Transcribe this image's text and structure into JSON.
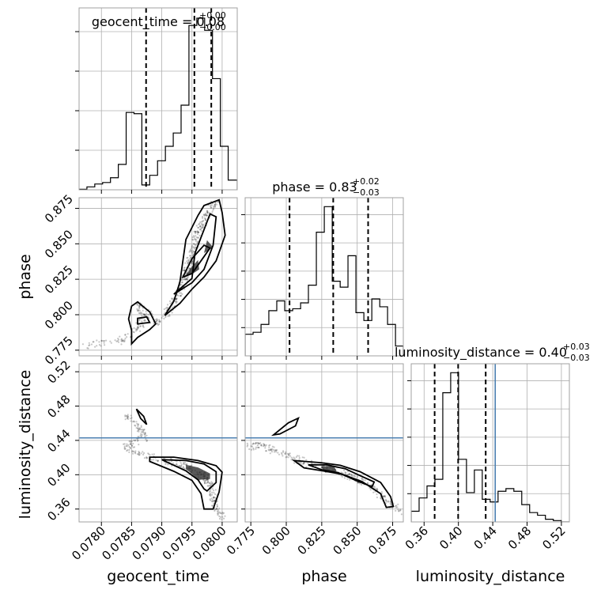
{
  "chart_data": {
    "type": "corner",
    "parameters": [
      {
        "name": "geocent_time",
        "xlabel": "geocent_time",
        "ylabel": "",
        "title_prefix": "geocent_time = ",
        "title_value": "0.08",
        "title_plus": "+0.00",
        "title_minus": "−0.00",
        "range": [
          0.07763,
          0.08025
        ],
        "ticks": [
          0.078,
          0.0785,
          0.079,
          0.0795,
          0.08
        ],
        "tick_labels": [
          "0.0780",
          "0.0785",
          "0.0790",
          "0.0795",
          "0.0800"
        ],
        "quantiles": [
          0.07874,
          0.07954,
          0.07982
        ],
        "hist_edges": [
          0.07763,
          0.07776,
          0.07789,
          0.07802,
          0.07815,
          0.07828,
          0.07841,
          0.07854,
          0.07867,
          0.0788,
          0.07893,
          0.07906,
          0.07919,
          0.07932,
          0.07945,
          0.07958,
          0.07971,
          0.07984,
          0.07997,
          0.0801,
          0.08025
        ],
        "hist_counts": [
          0.2,
          1.2,
          2.4,
          3.0,
          5.0,
          10.5,
          32.0,
          31.5,
          2.0,
          6.0,
          12.0,
          18.0,
          23.5,
          35.0,
          68.0,
          71.0,
          66.0,
          46.0,
          18.0,
          4.0
        ]
      },
      {
        "name": "phase",
        "xlabel": "phase",
        "ylabel": "phase",
        "title_prefix": "phase = ",
        "title_value": "0.83",
        "title_plus": "+0.02",
        "title_minus": "−0.03",
        "range": [
          0.771,
          0.8825
        ],
        "ticks": [
          0.775,
          0.8,
          0.825,
          0.85,
          0.875
        ],
        "tick_labels": [
          "0.775",
          "0.800",
          "0.825",
          "0.850",
          "0.875"
        ],
        "quantiles": [
          0.8023,
          0.8331,
          0.8577
        ],
        "hist_edges": [
          0.771,
          0.7766,
          0.7822,
          0.7877,
          0.7933,
          0.7989,
          0.8045,
          0.8101,
          0.8156,
          0.8212,
          0.8268,
          0.8324,
          0.838,
          0.8435,
          0.8491,
          0.8547,
          0.8603,
          0.8659,
          0.8714,
          0.877,
          0.8825
        ],
        "hist_counts": [
          11.0,
          12.0,
          16.0,
          23.0,
          28.0,
          23.0,
          24.0,
          27.0,
          36.0,
          63.0,
          76.0,
          38.0,
          35.0,
          51.0,
          22.0,
          18.0,
          29.0,
          25.0,
          16.0,
          5.0
        ]
      },
      {
        "name": "luminosity_distance",
        "xlabel": "luminosity_distance",
        "ylabel": "luminosity_distance",
        "title_prefix": "luminosity_distance = ",
        "title_value": "0.40",
        "title_plus": "+0.03",
        "title_minus": "−0.03",
        "range": [
          0.345,
          0.5293
        ],
        "ticks": [
          0.36,
          0.4,
          0.44,
          0.48,
          0.52
        ],
        "tick_labels": [
          "0.36",
          "0.40",
          "0.44",
          "0.48",
          "0.52"
        ],
        "quantiles": [
          0.3723,
          0.3997,
          0.4318
        ],
        "truth": 0.4429,
        "hist_edges": [
          0.345,
          0.3542,
          0.3634,
          0.3726,
          0.3818,
          0.391,
          0.4002,
          0.4094,
          0.4186,
          0.4278,
          0.437,
          0.4462,
          0.4554,
          0.4646,
          0.4738,
          0.483,
          0.4922,
          0.5014,
          0.5106,
          0.5198,
          0.5293
        ],
        "hist_counts": [
          8.0,
          18.0,
          27.0,
          32.0,
          97.0,
          112.0,
          47.0,
          22.0,
          39.0,
          17.0,
          15.0,
          23.0,
          25.0,
          23.0,
          13.0,
          7.0,
          5.0,
          2.0,
          1.0,
          0.0
        ]
      }
    ],
    "pairs": [
      {
        "x": "geocent_time",
        "y": "phase",
        "cloud_path": [
          [
            0.0777,
            0.7785
          ],
          [
            0.0783,
            0.781
          ],
          [
            0.0786,
            0.789
          ],
          [
            0.0787,
            0.798
          ],
          [
            0.0786,
            0.808
          ],
          [
            0.0789,
            0.794
          ],
          [
            0.0791,
            0.8015
          ],
          [
            0.0792,
            0.809
          ],
          [
            0.0793,
            0.816
          ],
          [
            0.07935,
            0.823
          ],
          [
            0.0794,
            0.829
          ],
          [
            0.07945,
            0.835
          ],
          [
            0.0795,
            0.842
          ],
          [
            0.07955,
            0.85
          ],
          [
            0.0796,
            0.858
          ],
          [
            0.0797,
            0.866
          ],
          [
            0.0798,
            0.874
          ],
          [
            0.0799,
            0.88
          ]
        ],
        "contours": [
          [
            [
              0.0785,
              0.7795
            ],
            [
              0.0786,
              0.784
            ],
            [
              0.0788,
              0.7895
            ],
            [
              0.0789,
              0.7935
            ],
            [
              0.0788,
              0.802
            ],
            [
              0.0786,
              0.809
            ],
            [
              0.0785,
              0.806
            ],
            [
              0.07845,
              0.797
            ],
            [
              0.0785,
              0.789
            ],
            [
              0.0785,
              0.7795
            ]
          ],
          [
            [
              0.0786,
              0.7935
            ],
            [
              0.0788,
              0.7945
            ],
            [
              0.07875,
              0.7985
            ],
            [
              0.0786,
              0.7975
            ],
            [
              0.0786,
              0.7935
            ]
          ],
          [
            [
              0.07905,
              0.7995
            ],
            [
              0.0792,
              0.8095
            ],
            [
              0.0793,
              0.823
            ],
            [
              0.07935,
              0.838
            ],
            [
              0.0794,
              0.853
            ],
            [
              0.0796,
              0.87
            ],
            [
              0.0797,
              0.877
            ],
            [
              0.07995,
              0.881
            ],
            [
              0.08,
              0.872
            ],
            [
              0.08005,
              0.856
            ],
            [
              0.0799,
              0.838
            ],
            [
              0.0797,
              0.8265
            ],
            [
              0.0795,
              0.818
            ],
            [
              0.0793,
              0.808
            ],
            [
              0.07905,
              0.7995
            ]
          ],
          [
            [
              0.0792,
              0.8145
            ],
            [
              0.0795,
              0.8255
            ],
            [
              0.07955,
              0.8435
            ],
            [
              0.0797,
              0.86
            ],
            [
              0.0798,
              0.871
            ],
            [
              0.0799,
              0.869
            ],
            [
              0.07985,
              0.849
            ],
            [
              0.0797,
              0.832
            ],
            [
              0.0795,
              0.8225
            ],
            [
              0.0792,
              0.8145
            ]
          ],
          [
            [
              0.07935,
              0.8265
            ],
            [
              0.0795,
              0.8395
            ],
            [
              0.0797,
              0.849
            ],
            [
              0.0798,
              0.847
            ],
            [
              0.07965,
              0.838
            ],
            [
              0.0795,
              0.829
            ],
            [
              0.07935,
              0.8265
            ]
          ]
        ],
        "filled_regions": [
          [
            [
              0.0794,
              0.828
            ],
            [
              0.0795,
              0.834
            ],
            [
              0.0796,
              0.8385
            ],
            [
              0.07962,
              0.832
            ],
            [
              0.0795,
              0.8285
            ],
            [
              0.0794,
              0.828
            ]
          ],
          [
            [
              0.0797,
              0.8435
            ],
            [
              0.07985,
              0.8475
            ],
            [
              0.07975,
              0.8525
            ],
            [
              0.0797,
              0.8435
            ]
          ]
        ]
      },
      {
        "x": "geocent_time",
        "y": "luminosity_distance",
        "truth_y": 0.4429,
        "cloud_path": [
          [
            0.0784,
            0.469
          ],
          [
            0.07865,
            0.455
          ],
          [
            0.0787,
            0.443
          ],
          [
            0.0784,
            0.434
          ],
          [
            0.0786,
            0.424
          ],
          [
            0.079,
            0.418
          ],
          [
            0.0793,
            0.412
          ],
          [
            0.0795,
            0.405
          ],
          [
            0.0797,
            0.397
          ],
          [
            0.0798,
            0.389
          ],
          [
            0.07985,
            0.376
          ],
          [
            0.0799,
            0.362
          ],
          [
            0.08,
            0.35
          ]
        ],
        "contours": [
          [
            [
              0.07858,
              0.4765
            ],
            [
              0.0787,
              0.468
            ],
            [
              0.07875,
              0.4585
            ],
            [
              0.07865,
              0.4655
            ],
            [
              0.07858,
              0.4765
            ]
          ],
          [
            [
              0.0788,
              0.4205
            ],
            [
              0.0792,
              0.4205
            ],
            [
              0.0796,
              0.4165
            ],
            [
              0.0799,
              0.4105
            ],
            [
              0.08,
              0.403
            ],
            [
              0.07995,
              0.38
            ],
            [
              0.07985,
              0.36
            ],
            [
              0.0797,
              0.36
            ],
            [
              0.07965,
              0.378
            ],
            [
              0.0795,
              0.3935
            ],
            [
              0.0792,
              0.404
            ],
            [
              0.0788,
              0.4155
            ],
            [
              0.0788,
              0.4205
            ]
          ],
          [
            [
              0.079,
              0.4175
            ],
            [
              0.0794,
              0.4165
            ],
            [
              0.0797,
              0.4125
            ],
            [
              0.0799,
              0.4035
            ],
            [
              0.0799,
              0.391
            ],
            [
              0.07975,
              0.381
            ],
            [
              0.0797,
              0.3835
            ],
            [
              0.0796,
              0.394
            ],
            [
              0.0794,
              0.4045
            ],
            [
              0.079,
              0.4175
            ]
          ]
        ],
        "filled_regions": [
          [
            [
              0.0794,
              0.4115
            ],
            [
              0.0796,
              0.4085
            ],
            [
              0.0798,
              0.4015
            ],
            [
              0.0798,
              0.395
            ],
            [
              0.0796,
              0.394
            ],
            [
              0.0795,
              0.401
            ],
            [
              0.0794,
              0.4065
            ],
            [
              0.0794,
              0.4115
            ]
          ]
        ]
      },
      {
        "x": "phase",
        "y": "luminosity_distance",
        "truth_y": 0.4429,
        "cloud_path": [
          [
            0.7725,
            0.432
          ],
          [
            0.7825,
            0.4345
          ],
          [
            0.7925,
            0.4265
          ],
          [
            0.805,
            0.419
          ],
          [
            0.818,
            0.412
          ],
          [
            0.83,
            0.408
          ],
          [
            0.842,
            0.401
          ],
          [
            0.852,
            0.393
          ],
          [
            0.862,
            0.382
          ],
          [
            0.872,
            0.369
          ],
          [
            0.881,
            0.356
          ]
        ],
        "contours": [
          [
            [
              0.791,
              0.4465
            ],
            [
              0.8015,
              0.4605
            ],
            [
              0.8085,
              0.466
            ],
            [
              0.8065,
              0.457
            ],
            [
              0.7955,
              0.4475
            ],
            [
              0.791,
              0.4465
            ]
          ],
          [
            [
              0.8055,
              0.4165
            ],
            [
              0.8245,
              0.414
            ],
            [
              0.838,
              0.411
            ],
            [
              0.852,
              0.4035
            ],
            [
              0.8665,
              0.391
            ],
            [
              0.8735,
              0.3745
            ],
            [
              0.8755,
              0.363
            ],
            [
              0.8705,
              0.362
            ],
            [
              0.8665,
              0.378
            ],
            [
              0.8535,
              0.392
            ],
            [
              0.8395,
              0.4005
            ],
            [
              0.8255,
              0.4045
            ],
            [
              0.8125,
              0.408
            ],
            [
              0.8055,
              0.4165
            ]
          ],
          [
            [
              0.8155,
              0.4115
            ],
            [
              0.8285,
              0.4115
            ],
            [
              0.8415,
              0.407
            ],
            [
              0.852,
              0.399
            ],
            [
              0.862,
              0.3915
            ],
            [
              0.8605,
              0.386
            ],
            [
              0.8495,
              0.393
            ],
            [
              0.8365,
              0.4025
            ],
            [
              0.8255,
              0.4055
            ],
            [
              0.8155,
              0.4115
            ]
          ]
        ],
        "filled_regions": [
          [
            [
              0.8245,
              0.4095
            ],
            [
              0.8335,
              0.4105
            ],
            [
              0.8355,
              0.404
            ],
            [
              0.8275,
              0.4025
            ],
            [
              0.8245,
              0.4095
            ]
          ]
        ]
      }
    ],
    "truth_color": "#4a7fb0",
    "line_color": "#000000",
    "grid": true
  }
}
